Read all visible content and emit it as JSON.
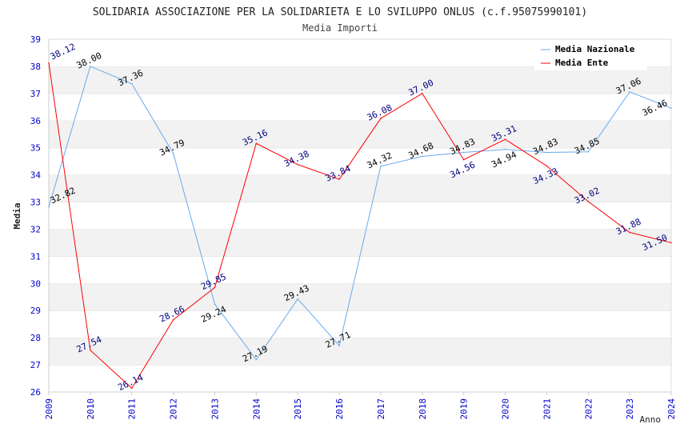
{
  "chart_data": {
    "type": "line",
    "title": "SOLIDARIA ASSOCIAZIONE PER LA SOLIDARIETA E LO SVILUPPO ONLUS (c.f.95075990101)",
    "subtitle": "Media Importi",
    "xlabel": "Anno",
    "ylabel": "Media",
    "ylim": [
      26,
      39
    ],
    "yticks": [
      "26",
      "27",
      "28",
      "29",
      "30",
      "31",
      "32",
      "33",
      "34",
      "35",
      "36",
      "37",
      "38",
      "39"
    ],
    "x": [
      "2009",
      "2010",
      "2011",
      "2012",
      "2013",
      "2014",
      "2015",
      "2016",
      "2017",
      "2018",
      "2019",
      "2020",
      "2021",
      "2022",
      "2023",
      "2024"
    ],
    "legend_position": "top-right",
    "series": [
      {
        "name": "Media Nazionale",
        "color": "#66aaee",
        "label_color": "#000000",
        "values": [
          32.82,
          38.0,
          37.36,
          34.79,
          29.24,
          27.19,
          29.43,
          27.71,
          34.32,
          34.68,
          34.83,
          34.94,
          34.83,
          34.85,
          37.06,
          36.46
        ],
        "labels": [
          "32.82",
          "38.00",
          "37.36",
          "34.79",
          "29.24",
          "27.19",
          "29.43",
          "27.71",
          "34.32",
          "34.68",
          "34.83",
          "34.94",
          "34.83",
          "34.85",
          "37.06",
          "36.46"
        ]
      },
      {
        "name": "Media Ente",
        "color": "#ff0000",
        "label_color": "#000080",
        "values": [
          38.12,
          27.54,
          26.14,
          28.66,
          29.85,
          35.16,
          34.38,
          33.84,
          36.08,
          37.0,
          34.56,
          35.31,
          34.33,
          33.02,
          31.88,
          31.5
        ],
        "labels": [
          "38.12",
          "27.54",
          "26.14",
          "28.66",
          "29.85",
          "35.16",
          "34.38",
          "33.84",
          "36.08",
          "37.00",
          "34.56",
          "35.31",
          "34.33",
          "33.02",
          "31.88",
          "31.50"
        ]
      }
    ]
  }
}
